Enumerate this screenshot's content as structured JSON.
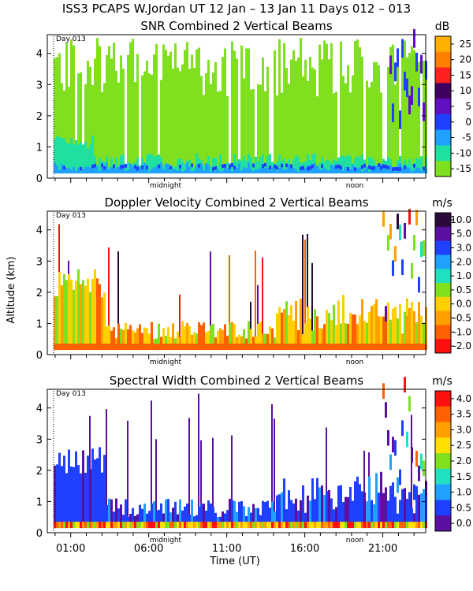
{
  "header": "ISS3 PCAPS W.Jordan UT  12 Jan – 13 Jan 11 Days 012 – 013",
  "ylabel": "Altitude (km)",
  "xlabel": "Time (UT)",
  "chart_data": [
    {
      "type": "heatmap",
      "title": "SNR Combined 2 Vertical Beams",
      "unit": "dB",
      "day_label": "Day 013",
      "yticks": [
        "0",
        "1",
        "2",
        "3",
        "4"
      ],
      "ylim": [
        0,
        4.6
      ],
      "xlim_hours": [
        -0.5,
        23.75
      ],
      "x_marker_labels": {
        "midnight": 6.9,
        "noon": 18.9
      },
      "midnight_label": "midnight",
      "noon_label": "noon",
      "colorbar": {
        "labels": [
          "25",
          "20",
          "15",
          "10",
          "5",
          "0",
          "-5",
          "-10",
          "-15"
        ],
        "colors": [
          "#ffb000",
          "#ff8000",
          "#ff2020",
          "#400060",
          "#6010c0",
          "#2040ff",
          "#20a0ff",
          "#20e0a0",
          "#80e020"
        ]
      },
      "background_color": "#90e838"
    },
    {
      "type": "heatmap",
      "title": "Doppler Velocity Combined 2 Vertical Beams",
      "unit": "m/s",
      "day_label": "Day 013",
      "yticks": [
        "0",
        "1",
        "2",
        "3",
        "4"
      ],
      "ylim": [
        0,
        4.6
      ],
      "xlim_hours": [
        -0.5,
        23.75
      ],
      "midnight_label": "midnight",
      "noon_label": "noon",
      "colorbar": {
        "labels": [
          "10.0",
          "5.0",
          "3.0",
          "2.0",
          "1.0",
          "0.5",
          "0.0",
          "-0.5",
          "-1.0",
          "-2.0"
        ],
        "colors": [
          "#2a0a3a",
          "#5a10a0",
          "#2040ff",
          "#20a0ff",
          "#20e0c0",
          "#80e020",
          "#ffd000",
          "#ffa000",
          "#ff6000",
          "#ff1010"
        ]
      },
      "background_color": "#ffffff"
    },
    {
      "type": "heatmap",
      "title": "Spectral Width Combined 2 Vertical Beams",
      "unit": "m/s",
      "day_label": "Day 013",
      "yticks": [
        "0",
        "1",
        "2",
        "3",
        "4"
      ],
      "ylim": [
        0,
        4.6
      ],
      "xlim_hours": [
        -0.5,
        23.75
      ],
      "midnight_label": "midnight",
      "noon_label": "noon",
      "xticks": [
        "01:00",
        "06:00",
        "11:00",
        "16:00",
        "21:00"
      ],
      "xtick_hours": [
        1,
        6,
        11,
        16,
        21
      ],
      "colorbar": {
        "labels": [
          "4.0",
          "3.5",
          "3.0",
          "2.5",
          "2.0",
          "1.5",
          "1.0",
          "0.5",
          "0.0"
        ],
        "colors": [
          "#ff1010",
          "#ff6000",
          "#ffa000",
          "#ffe000",
          "#80e020",
          "#20e0c0",
          "#20a0ff",
          "#2040ff",
          "#5a10a0"
        ]
      },
      "background_color": "#ffffff"
    }
  ]
}
